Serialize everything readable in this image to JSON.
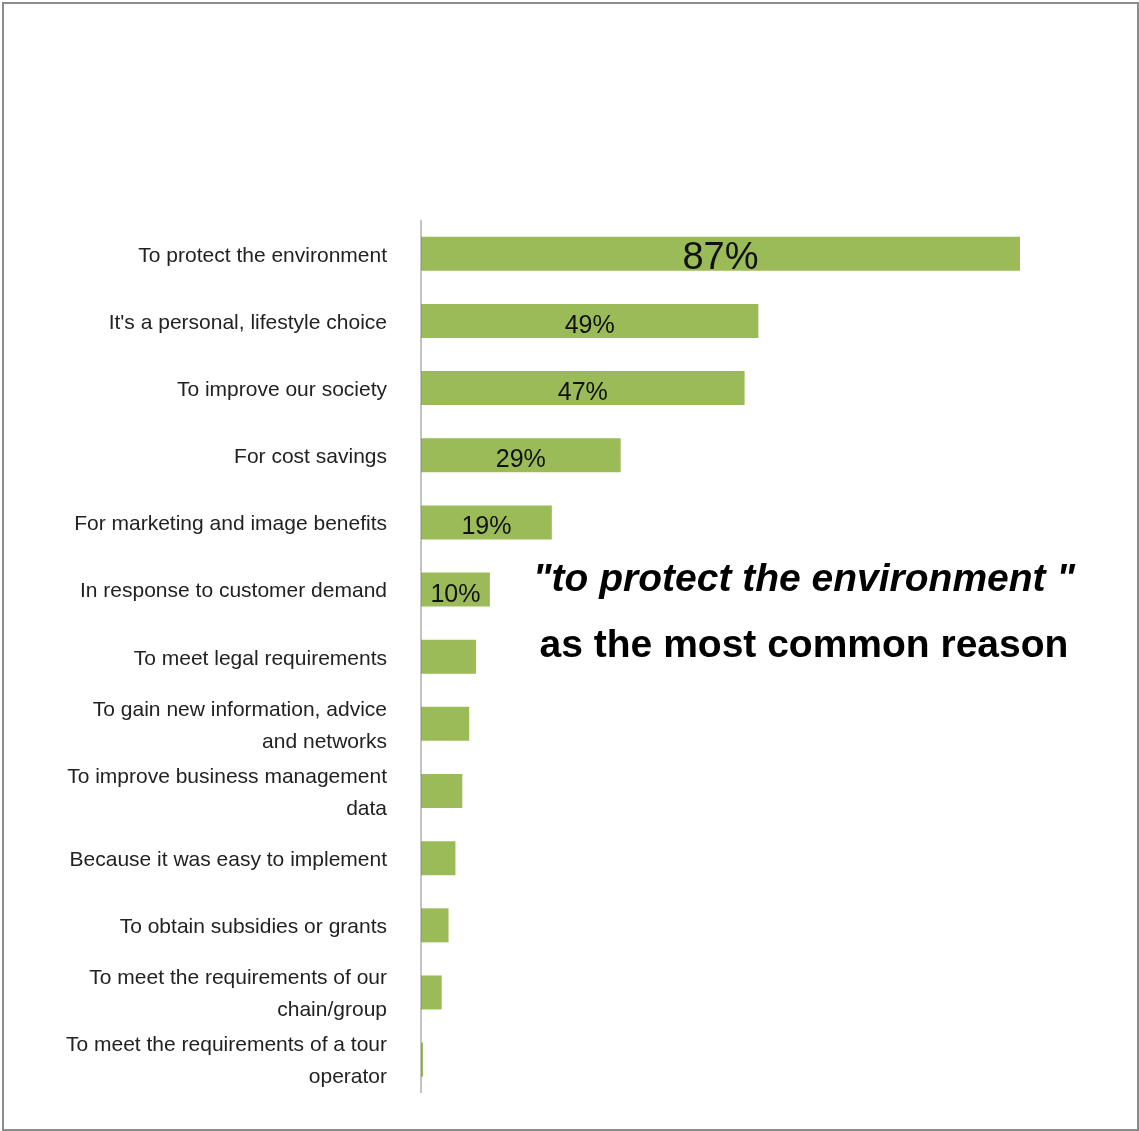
{
  "chart_data": {
    "type": "bar",
    "orientation": "horizontal",
    "categories": [
      "To protect the environment",
      "It's a personal, lifestyle choice",
      "To improve our society",
      "For cost savings",
      "For marketing and image benefits",
      "In response to customer demand",
      "To meet legal requirements",
      "To gain new information, advice and networks",
      "To improve business management data",
      "Because it was easy to implement",
      "To obtain subsidies or grants",
      "To meet the requirements of our chain/group",
      "To meet the requirements of a tour operator"
    ],
    "values": [
      87,
      49,
      47,
      29,
      19,
      10,
      8,
      7,
      6,
      5,
      4,
      3,
      0.3
    ],
    "value_labels": [
      "87%",
      "49%",
      "47%",
      "29%",
      "19%",
      "10%",
      null,
      null,
      null,
      null,
      null,
      null,
      null
    ],
    "color": "#9bbb59",
    "annotations": [
      "\"to protect the environment \"",
      "as the most common reason"
    ]
  }
}
